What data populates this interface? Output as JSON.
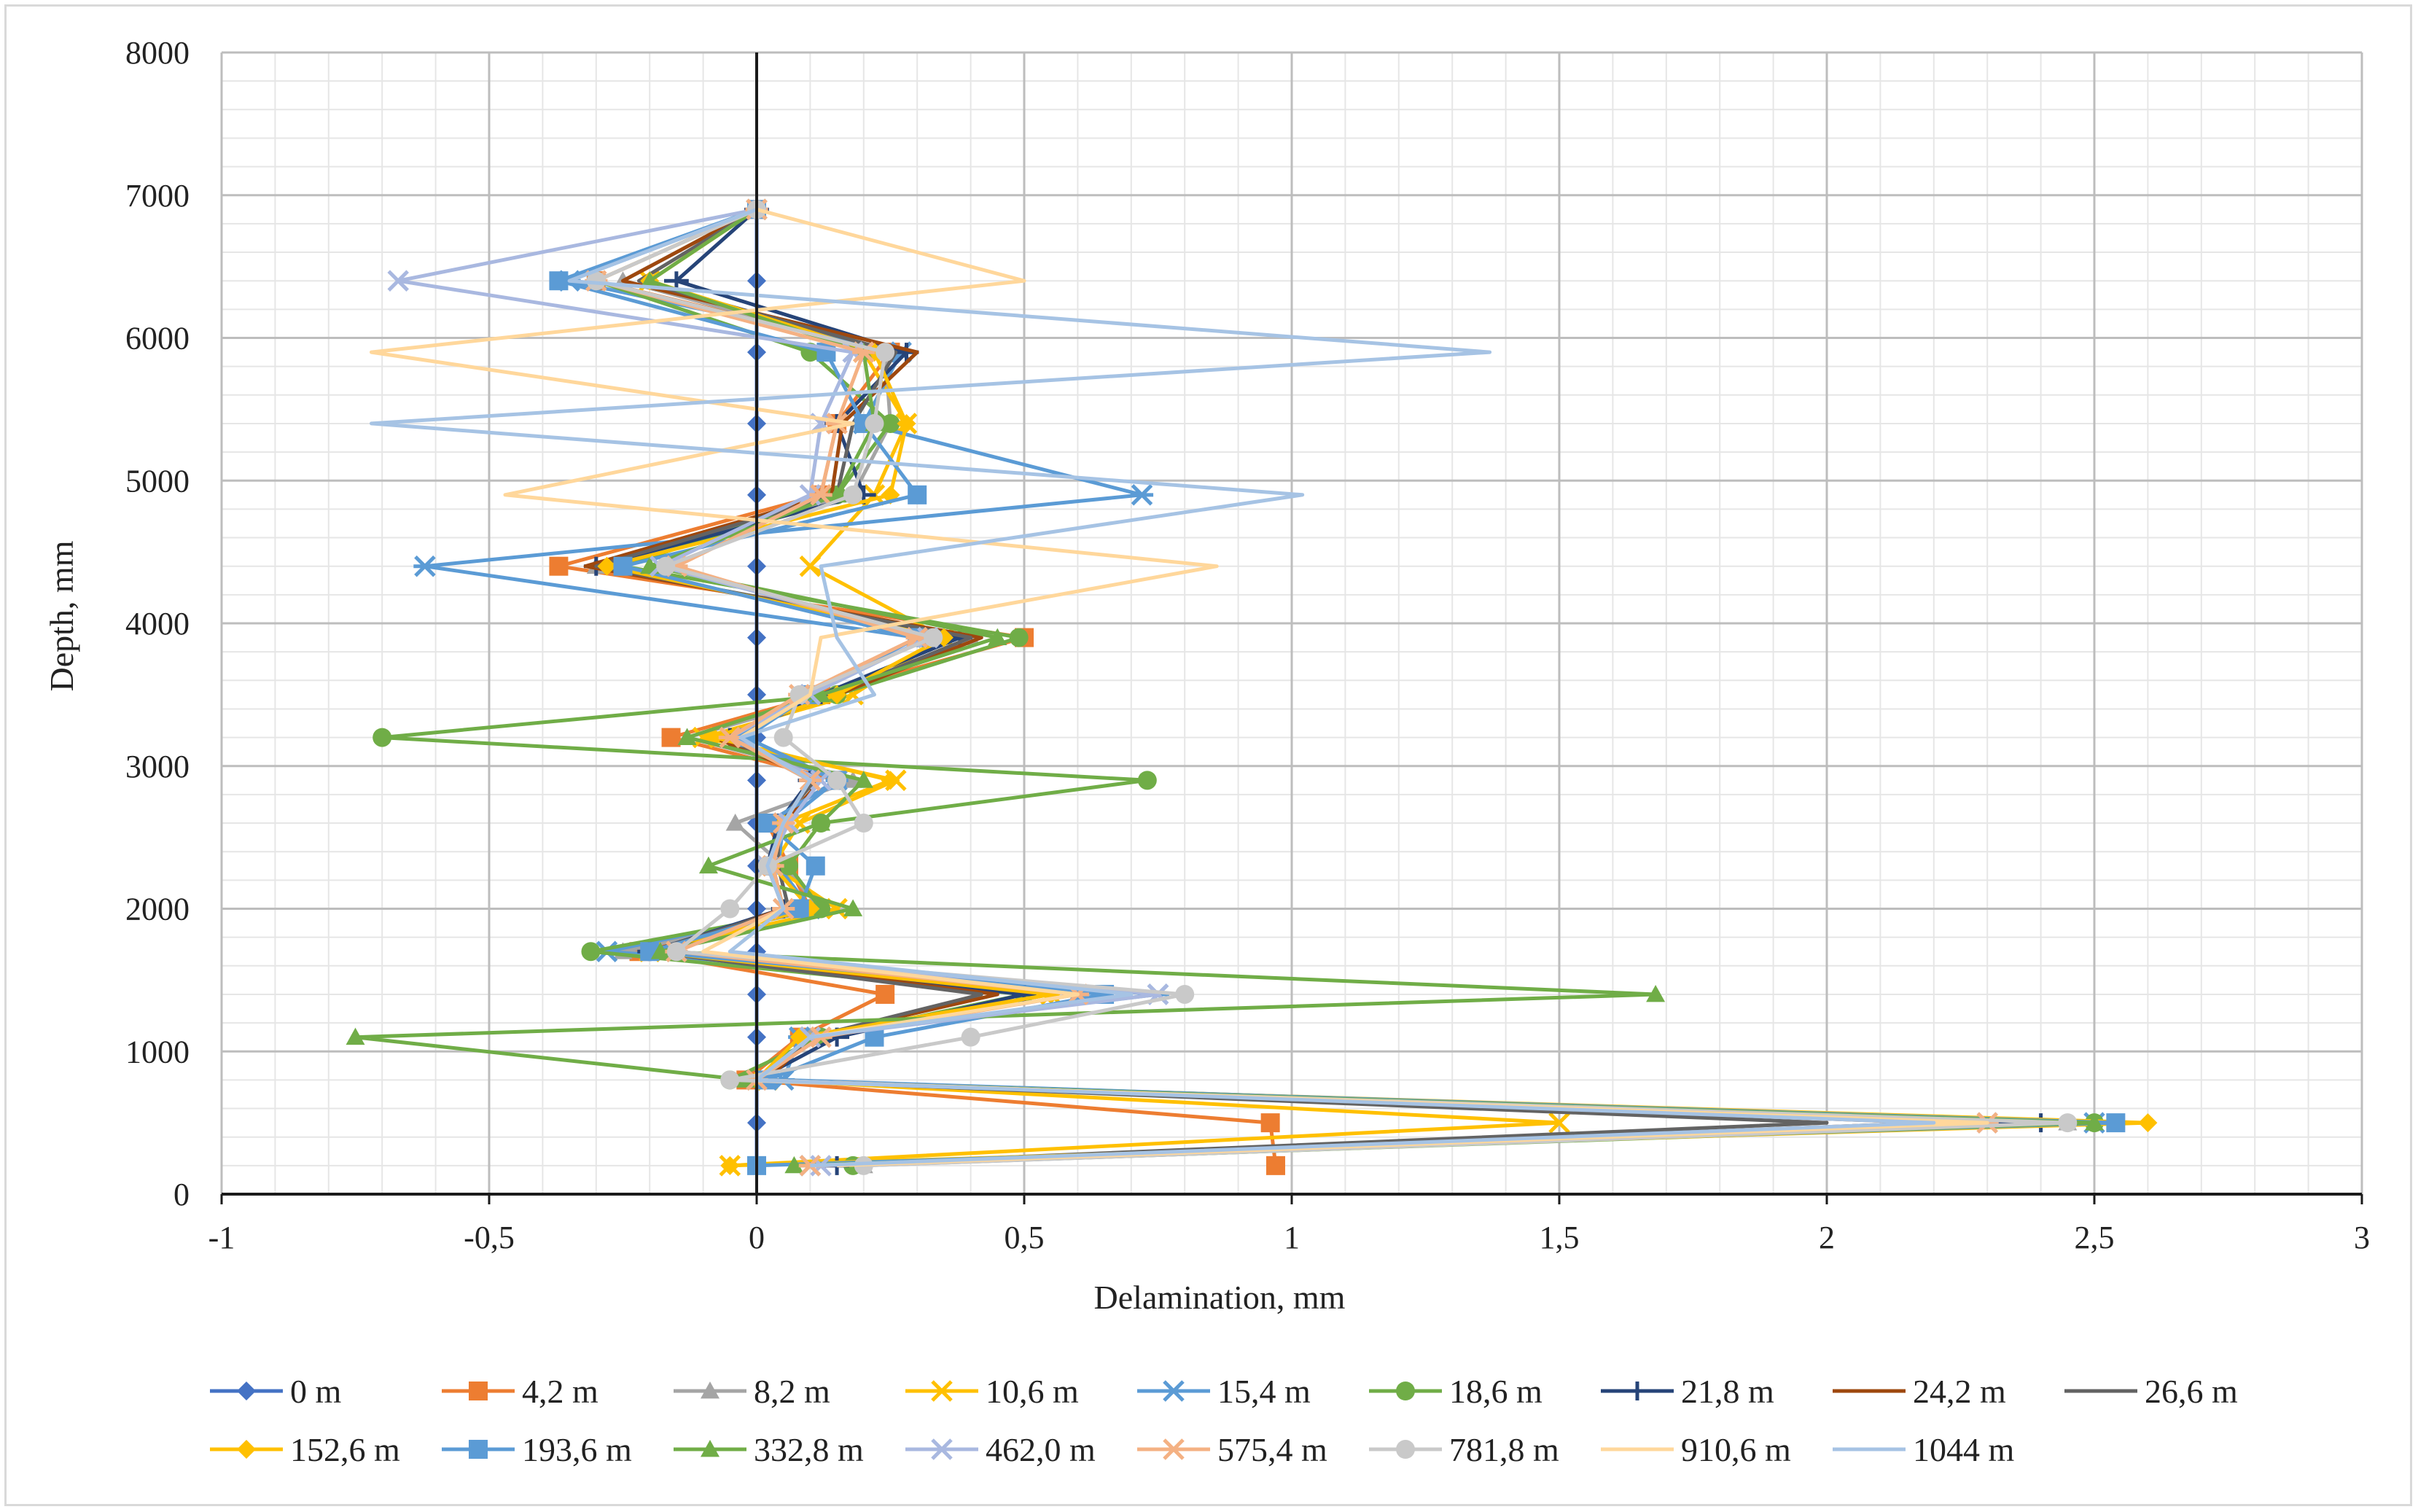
{
  "chart_data": {
    "type": "line",
    "title": "",
    "xlabel": "Delamination, mm",
    "ylabel": "Depth, mm",
    "xlim": [
      -1,
      3
    ],
    "ylim": [
      0,
      8000
    ],
    "grid": true,
    "legend_position": "bottom",
    "x_ticks": [
      "-1",
      "-0,5",
      "0",
      "0,5",
      "1",
      "1,5",
      "2",
      "2,5",
      "3"
    ],
    "y_ticks": [
      "0",
      "1000",
      "2000",
      "3000",
      "4000",
      "5000",
      "6000",
      "7000",
      "8000"
    ],
    "depths": [
      200,
      500,
      800,
      1100,
      1400,
      1700,
      2000,
      2300,
      2600,
      2900,
      3200,
      3500,
      3900,
      4400,
      4900,
      5400,
      5900,
      6400,
      6900
    ],
    "series": [
      {
        "name": "0 m",
        "color": "#4472c4",
        "marker": "diamond",
        "values": [
          0,
          0,
          0,
          0,
          0,
          0,
          0,
          0,
          0,
          0,
          0,
          0,
          0,
          0,
          0,
          0,
          0,
          0,
          0
        ]
      },
      {
        "name": "4,2 m",
        "color": "#ed7d31",
        "marker": "square",
        "values": [
          0.97,
          0.96,
          -0.02,
          0.08,
          0.24,
          -0.22,
          0.1,
          0.06,
          0.02,
          0.15,
          -0.16,
          0.12,
          0.5,
          -0.37,
          0.12,
          0.15,
          0.25,
          -0.3,
          0
        ]
      },
      {
        "name": "8,2 m",
        "color": "#a5a5a5",
        "marker": "triangle",
        "values": [
          0.2,
          2.45,
          0,
          0.1,
          0.6,
          -0.25,
          0.12,
          0.05,
          -0.04,
          0.18,
          -0.13,
          0.15,
          0.4,
          -0.3,
          0.18,
          0.25,
          0.24,
          -0.25,
          0
        ]
      },
      {
        "name": "10,6 m",
        "color": "#ffc000",
        "marker": "x",
        "values": [
          -0.05,
          1.5,
          0.02,
          0.1,
          0.55,
          -0.2,
          0.15,
          0.03,
          0.08,
          0.26,
          -0.1,
          0.18,
          0.35,
          0.1,
          0.22,
          0.28,
          0.2,
          -0.2,
          0
        ]
      },
      {
        "name": "15,4 m",
        "color": "#5b9bd5",
        "marker": "star",
        "values": [
          0.1,
          2.5,
          0.05,
          0.08,
          0.75,
          -0.28,
          0.1,
          0.04,
          0.05,
          0.15,
          -0.05,
          0.1,
          0.3,
          -0.62,
          0.72,
          0.2,
          0.27,
          -0.35,
          0
        ]
      },
      {
        "name": "18,6 m",
        "color": "#70ad47",
        "marker": "circle",
        "values": [
          0.18,
          2.5,
          -0.05,
          0.12,
          0.5,
          -0.31,
          0.12,
          0.06,
          0.12,
          0.73,
          -0.7,
          0.15,
          0.49,
          -0.25,
          0.15,
          0.25,
          0.1,
          -0.3,
          0
        ]
      },
      {
        "name": "21,8 m",
        "color": "#264478",
        "marker": "plus",
        "values": [
          0.15,
          2.4,
          0,
          0.15,
          0.5,
          -0.2,
          0.05,
          0.02,
          0.04,
          0.1,
          -0.05,
          0.12,
          0.38,
          -0.3,
          0.2,
          0.15,
          0.28,
          -0.15,
          0
        ]
      },
      {
        "name": "24,2 m",
        "color": "#9e480e",
        "marker": "none",
        "values": [
          0.12,
          2.2,
          0.02,
          0.1,
          0.45,
          -0.18,
          0.05,
          0.03,
          0.05,
          0.12,
          -0.08,
          0.15,
          0.42,
          -0.32,
          0.14,
          0.16,
          0.3,
          -0.25,
          0
        ]
      },
      {
        "name": "26,6 m",
        "color": "#636363",
        "marker": "none",
        "values": [
          0.1,
          2.0,
          0.01,
          0.1,
          0.42,
          -0.2,
          0.06,
          0.04,
          0.04,
          0.11,
          -0.06,
          0.14,
          0.4,
          -0.3,
          0.15,
          0.18,
          0.26,
          -0.22,
          0
        ]
      },
      {
        "name": "152,6 m",
        "color": "#ffc000",
        "marker": "diamond",
        "values": [
          -0.05,
          2.6,
          0,
          0.08,
          0.55,
          -0.2,
          0.1,
          0.03,
          0.05,
          0.25,
          -0.08,
          0.15,
          0.35,
          -0.28,
          0.25,
          0.28,
          0.22,
          -0.2,
          0
        ]
      },
      {
        "name": "193,6 m",
        "color": "#5b9bd5",
        "marker": "square",
        "values": [
          0,
          2.54,
          0.02,
          0.22,
          0.65,
          -0.2,
          0.08,
          0.11,
          0.02,
          0.15,
          -0.02,
          0.1,
          0.3,
          -0.25,
          0.3,
          0.2,
          0.13,
          -0.37,
          0
        ]
      },
      {
        "name": "332,8 m",
        "color": "#70ad47",
        "marker": "triangle",
        "values": [
          0.07,
          2.5,
          -0.02,
          -0.75,
          1.68,
          -0.18,
          0.18,
          -0.09,
          0.12,
          0.2,
          -0.13,
          0.12,
          0.45,
          -0.2,
          0.15,
          0.22,
          0.2,
          -0.2,
          0
        ]
      },
      {
        "name": "462,0 m",
        "color": "#a9b8e0",
        "marker": "x",
        "values": [
          0.12,
          2.3,
          0,
          0.1,
          0.75,
          -0.15,
          0.05,
          0.02,
          0.06,
          0.12,
          -0.05,
          0.1,
          0.32,
          -0.18,
          0.1,
          0.12,
          0.18,
          -0.67,
          0
        ]
      },
      {
        "name": "575,4 m",
        "color": "#f4b183",
        "marker": "star",
        "values": [
          0.1,
          2.3,
          0,
          0.12,
          0.6,
          -0.15,
          0.05,
          0.03,
          0.05,
          0.1,
          -0.05,
          0.08,
          0.3,
          -0.15,
          0.12,
          0.15,
          0.2,
          -0.3,
          0
        ]
      },
      {
        "name": "781,8 m",
        "color": "#c9c9c9",
        "marker": "circle",
        "values": [
          0.2,
          2.45,
          -0.05,
          0.4,
          0.8,
          -0.15,
          -0.05,
          0.02,
          0.2,
          0.15,
          0.05,
          0.08,
          0.33,
          -0.17,
          0.18,
          0.22,
          0.24,
          -0.3,
          0
        ]
      },
      {
        "name": "910,6 m",
        "color": "#ffd79b",
        "marker": "none",
        "values": [
          0.15,
          2.3,
          0,
          0.1,
          0.6,
          -0.1,
          0.05,
          0.02,
          0.05,
          0.1,
          -0.03,
          0.1,
          0.12,
          0.86,
          -0.47,
          0.18,
          -0.72,
          0.5,
          0
        ]
      },
      {
        "name": "1044 m",
        "color": "#a6c3e4",
        "marker": "none",
        "values": [
          0.1,
          2.2,
          0,
          0.1,
          0.7,
          -0.05,
          0.05,
          0.02,
          0.05,
          0.1,
          -0.03,
          0.22,
          0.15,
          0.12,
          1.02,
          -0.72,
          1.37,
          -0.35,
          0
        ]
      }
    ]
  }
}
